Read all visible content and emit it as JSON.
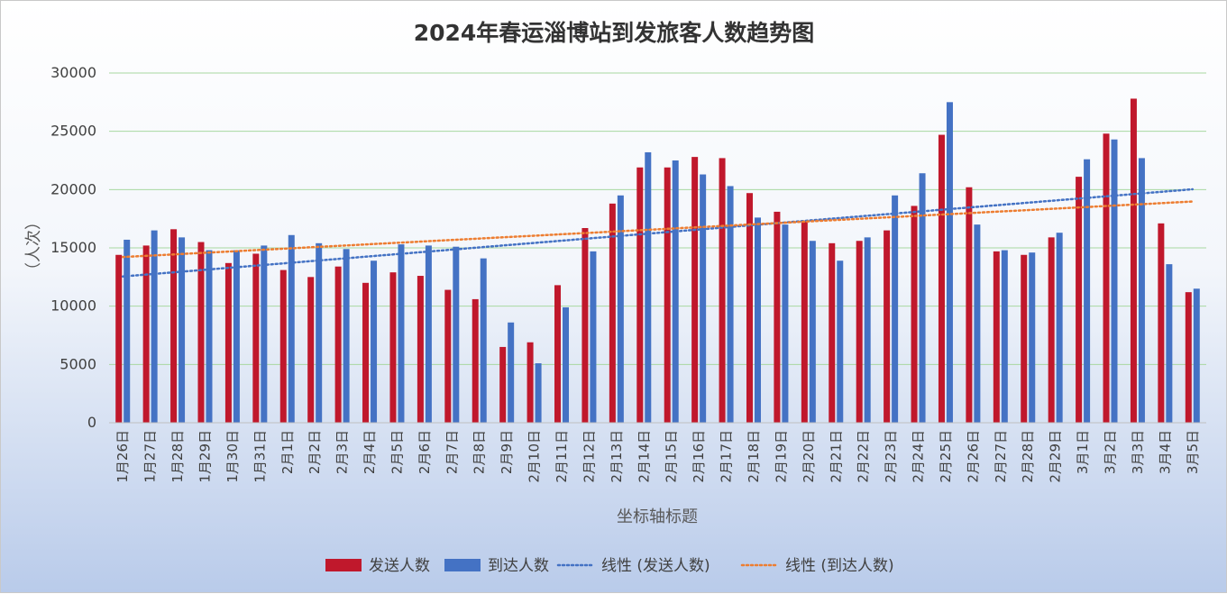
{
  "chart_data": {
    "type": "bar",
    "title": "2024年春运淄博站到发旅客人数趋势图",
    "xlabel": "坐标轴标题",
    "ylabel": "（人次）",
    "ylim": [
      0,
      30000
    ],
    "yticks": [
      0,
      5000,
      10000,
      15000,
      20000,
      25000,
      30000
    ],
    "grid": true,
    "legend_position": "bottom",
    "categories": [
      "1月26日",
      "1月27日",
      "1月28日",
      "1月29日",
      "1月30日",
      "1月31日",
      "2月1日",
      "2月2日",
      "2月3日",
      "2月4日",
      "2月5日",
      "2月6日",
      "2月7日",
      "2月8日",
      "2月9日",
      "2月10日",
      "2月11日",
      "2月12日",
      "2月13日",
      "2月14日",
      "2月15日",
      "2月16日",
      "2月17日",
      "2月18日",
      "2月19日",
      "2月20日",
      "2月21日",
      "2月22日",
      "2月23日",
      "2月24日",
      "2月25日",
      "2月26日",
      "2月27日",
      "2月28日",
      "2月29日",
      "3月1日",
      "3月2日",
      "3月3日",
      "3月4日",
      "3月5日"
    ],
    "series": [
      {
        "name": "发送人数",
        "color": "#c0182c",
        "values": [
          14400,
          15200,
          16600,
          15500,
          13700,
          14500,
          13100,
          12500,
          13400,
          12000,
          12900,
          12600,
          11400,
          10600,
          6500,
          6900,
          11800,
          16700,
          18800,
          21900,
          21900,
          22800,
          22700,
          19700,
          18100,
          17300,
          15400,
          15600,
          16500,
          18600,
          24700,
          20200,
          14700,
          14400,
          15900,
          21100,
          24800,
          27800,
          17100,
          11200
        ]
      },
      {
        "name": "到达人数",
        "color": "#4472c4",
        "values": [
          15700,
          16500,
          15900,
          14800,
          14800,
          15200,
          16100,
          15400,
          14900,
          13900,
          15300,
          15200,
          15100,
          14100,
          8600,
          5100,
          9900,
          14700,
          19500,
          23200,
          22500,
          21300,
          20300,
          17600,
          17000,
          15600,
          13900,
          15900,
          19500,
          21400,
          27500,
          17000,
          14800,
          14600,
          16300,
          22600,
          24300,
          22700,
          13600,
          11500
        ]
      }
    ],
    "trendlines": [
      {
        "name": "线性 (发送人数)",
        "color": "#4472c4",
        "type": "linear",
        "of": "发送人数"
      },
      {
        "name": "线性 (到达人数)",
        "color": "#ed7d31",
        "type": "linear",
        "of": "到达人数"
      }
    ]
  }
}
